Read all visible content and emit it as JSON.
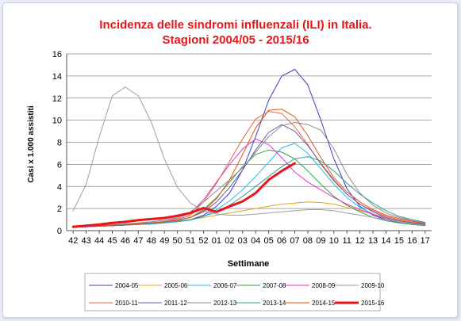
{
  "chart_data": {
    "type": "line",
    "title_line1": "Incidenza delle sindromi influenzali (ILI) in Italia.",
    "title_line2": "Stagioni 2004/05 - 2015/16",
    "title_color": "#e8161b",
    "xlabel": "Settimane",
    "ylabel": "Casi  x 1.000 assistiti",
    "ylim": [
      0,
      16
    ],
    "yticks": [
      0,
      2,
      4,
      6,
      8,
      10,
      12,
      14,
      16
    ],
    "grid": true,
    "legend_position": "bottom",
    "categories": [
      "42",
      "43",
      "44",
      "45",
      "46",
      "47",
      "48",
      "49",
      "50",
      "51",
      "52",
      "01",
      "02",
      "03",
      "04",
      "05",
      "06",
      "07",
      "08",
      "09",
      "10",
      "11",
      "12",
      "13",
      "14",
      "15",
      "16",
      "17"
    ],
    "series": [
      {
        "name": "2004-05",
        "color": "#3a3fc2",
        "width": 1,
        "values": [
          0.3,
          0.35,
          0.4,
          0.45,
          0.5,
          0.55,
          0.6,
          0.7,
          0.85,
          1.0,
          1.4,
          2.2,
          3.4,
          5.5,
          8.5,
          11.8,
          14.0,
          14.6,
          13.2,
          10.0,
          6.5,
          3.8,
          2.2,
          1.4,
          1.0,
          0.75,
          0.6,
          0.5
        ]
      },
      {
        "name": "2005-06",
        "color": "#e3a21a",
        "width": 1,
        "values": [
          0.4,
          0.45,
          0.5,
          0.55,
          0.6,
          0.65,
          0.7,
          0.8,
          0.9,
          1.0,
          1.2,
          1.4,
          1.6,
          1.8,
          2.0,
          2.2,
          2.4,
          2.5,
          2.6,
          2.55,
          2.4,
          2.1,
          1.8,
          1.5,
          1.2,
          0.9,
          0.7,
          0.5
        ]
      },
      {
        "name": "2006-07",
        "color": "#33b6e3",
        "width": 1,
        "values": [
          0.3,
          0.35,
          0.4,
          0.45,
          0.5,
          0.55,
          0.6,
          0.7,
          0.8,
          0.95,
          1.3,
          1.9,
          2.7,
          3.7,
          4.9,
          6.2,
          7.5,
          7.9,
          7.0,
          5.6,
          4.2,
          3.0,
          2.1,
          1.5,
          1.1,
          0.8,
          0.6,
          0.5
        ]
      },
      {
        "name": "2007-08",
        "color": "#33a245",
        "width": 1,
        "values": [
          0.3,
          0.35,
          0.4,
          0.45,
          0.5,
          0.6,
          0.7,
          0.8,
          0.95,
          1.2,
          1.9,
          3.0,
          4.4,
          5.8,
          6.9,
          7.3,
          7.1,
          6.5,
          5.4,
          4.2,
          3.1,
          2.3,
          1.7,
          1.2,
          0.9,
          0.7,
          0.55,
          0.45
        ]
      },
      {
        "name": "2008-09",
        "color": "#e233d6",
        "width": 1,
        "values": [
          0.3,
          0.35,
          0.4,
          0.5,
          0.6,
          0.7,
          0.8,
          0.95,
          1.1,
          1.6,
          2.8,
          4.4,
          6.0,
          7.4,
          8.3,
          7.8,
          6.6,
          5.3,
          4.4,
          3.7,
          3.0,
          2.4,
          1.9,
          1.5,
          1.1,
          0.8,
          0.6,
          0.5
        ]
      },
      {
        "name": "2009-10",
        "color": "#9e9e9e",
        "width": 1,
        "values": [
          1.8,
          4.2,
          8.5,
          12.2,
          13.0,
          12.2,
          9.8,
          6.5,
          3.9,
          2.5,
          1.8,
          1.5,
          1.4,
          1.4,
          1.5,
          1.6,
          1.7,
          1.8,
          1.9,
          1.9,
          1.8,
          1.6,
          1.4,
          1.2,
          1.0,
          0.8,
          0.6,
          0.5
        ]
      },
      {
        "name": "2010-11",
        "color": "#e06b3a",
        "width": 1,
        "values": [
          0.3,
          0.35,
          0.4,
          0.45,
          0.5,
          0.6,
          0.7,
          0.85,
          1.0,
          1.4,
          2.6,
          4.3,
          6.3,
          8.3,
          10.1,
          10.8,
          10.6,
          9.4,
          7.8,
          6.0,
          4.5,
          3.3,
          2.4,
          1.8,
          1.3,
          1.0,
          0.75,
          0.6
        ]
      },
      {
        "name": "2011-12",
        "color": "#6a5fa8",
        "width": 1,
        "values": [
          0.3,
          0.35,
          0.4,
          0.45,
          0.5,
          0.6,
          0.7,
          0.8,
          0.95,
          1.2,
          1.7,
          2.6,
          3.9,
          5.5,
          7.3,
          8.9,
          9.6,
          9.0,
          7.7,
          6.1,
          4.6,
          3.3,
          2.4,
          1.7,
          1.2,
          0.9,
          0.7,
          0.55
        ]
      },
      {
        "name": "2012-13",
        "color": "#8d8d8d",
        "width": 1,
        "values": [
          0.35,
          0.4,
          0.45,
          0.5,
          0.6,
          0.7,
          0.8,
          0.95,
          1.2,
          1.7,
          2.6,
          3.6,
          4.6,
          5.7,
          7.1,
          8.5,
          9.5,
          9.8,
          9.6,
          9.1,
          7.4,
          5.1,
          3.4,
          2.3,
          1.6,
          1.2,
          0.9,
          0.7
        ]
      },
      {
        "name": "2013-14",
        "color": "#3a9d93",
        "width": 1,
        "values": [
          0.35,
          0.4,
          0.45,
          0.5,
          0.55,
          0.6,
          0.65,
          0.75,
          0.85,
          1.0,
          1.3,
          1.7,
          2.3,
          3.1,
          4.0,
          4.9,
          5.8,
          6.5,
          6.7,
          6.3,
          5.4,
          4.3,
          3.3,
          2.5,
          1.8,
          1.3,
          1.0,
          0.75
        ]
      },
      {
        "name": "2014-15",
        "color": "#e0531a",
        "width": 1,
        "values": [
          0.35,
          0.4,
          0.45,
          0.5,
          0.55,
          0.6,
          0.7,
          0.8,
          0.95,
          1.2,
          1.8,
          2.9,
          4.6,
          6.9,
          9.3,
          10.9,
          11.0,
          10.3,
          8.6,
          6.6,
          4.8,
          3.5,
          2.6,
          1.9,
          1.4,
          1.1,
          0.85,
          0.65
        ]
      },
      {
        "name": "2015-16",
        "color": "#e8161b",
        "width": 3,
        "values": [
          0.35,
          0.45,
          0.55,
          0.7,
          0.8,
          0.95,
          1.05,
          1.15,
          1.35,
          1.6,
          2.05,
          1.7,
          2.2,
          2.65,
          3.4,
          4.6,
          5.4,
          6.1,
          null,
          null,
          null,
          null,
          null,
          null,
          null,
          null,
          null,
          null
        ]
      }
    ]
  }
}
